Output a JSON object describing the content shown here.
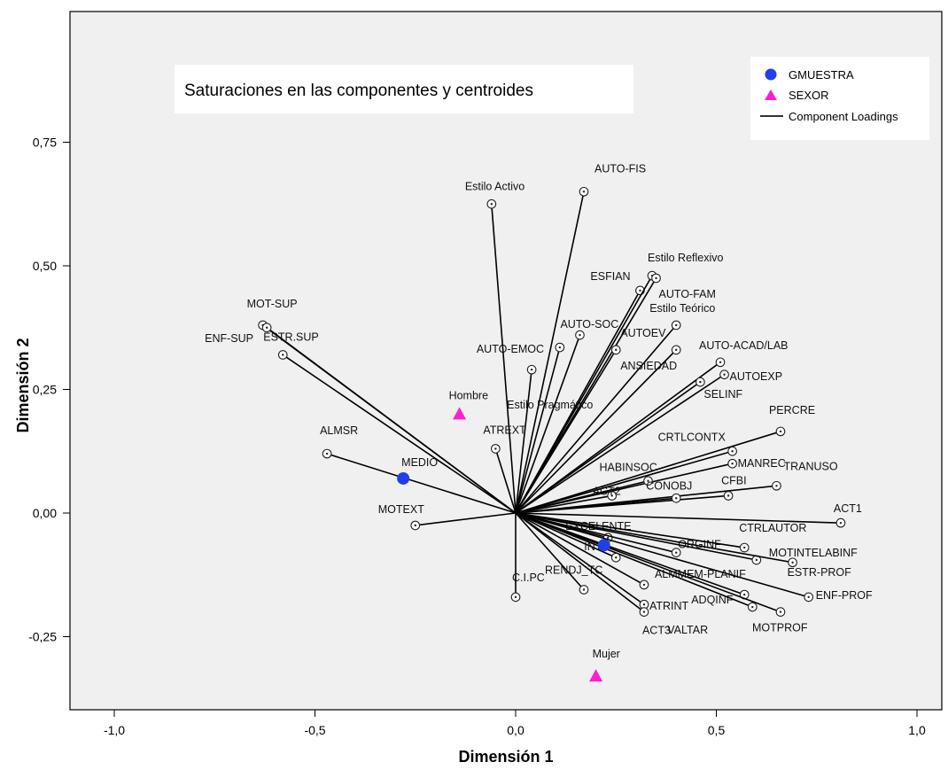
{
  "chart_data": {
    "type": "scatter",
    "title": "Saturaciones en las componentes y centroides",
    "xlabel": "Dimensión 1",
    "ylabel": "Dimensión 2",
    "xlim": [
      -1.1,
      1.1
    ],
    "ylim": [
      -0.4,
      1.0
    ],
    "x_ticks": [
      -1.0,
      -0.5,
      0.0,
      0.5,
      1.0
    ],
    "x_tick_labels": [
      "-1,0",
      "-0,5",
      "0,0",
      "0,5",
      "1,0"
    ],
    "y_ticks": [
      -0.25,
      0.0,
      0.25,
      0.5,
      0.75
    ],
    "y_tick_labels": [
      "-0,25",
      "0,00",
      "0,25",
      "0,50",
      "0,75"
    ],
    "legend": {
      "placement": "top-right",
      "items": [
        {
          "label": "GMUESTRA",
          "marker": "circle",
          "color": "#1f3fe8"
        },
        {
          "label": "SEXOR",
          "marker": "triangle",
          "color": "#ff1ecf"
        },
        {
          "label": "Component Loadings",
          "marker": "line",
          "color": "#000000"
        }
      ]
    },
    "plot_background": "#f0f0f0",
    "component_loadings": [
      {
        "name": "Estilo Activo",
        "x": -0.06,
        "y": 0.625
      },
      {
        "name": "AUTO-FIS",
        "x": 0.17,
        "y": 0.65
      },
      {
        "name": "ESFIAN",
        "x": 0.31,
        "y": 0.45
      },
      {
        "name": "Estilo Reflexivo",
        "x": 0.34,
        "y": 0.48
      },
      {
        "name": "AUTO-FAM",
        "x": 0.35,
        "y": 0.475
      },
      {
        "name": "AUTO-SOC",
        "x": 0.16,
        "y": 0.36
      },
      {
        "name": "AUTOEV",
        "x": 0.25,
        "y": 0.33
      },
      {
        "name": "Estilo Teórico",
        "x": 0.4,
        "y": 0.38
      },
      {
        "name": "AUTO-EMOC",
        "x": 0.11,
        "y": 0.335
      },
      {
        "name": "ANSIEDAD",
        "x": 0.4,
        "y": 0.33
      },
      {
        "name": "AUTO-ACAD/LAB",
        "x": 0.51,
        "y": 0.305
      },
      {
        "name": "AUTOEXP",
        "x": 0.52,
        "y": 0.28
      },
      {
        "name": "SELINF",
        "x": 0.46,
        "y": 0.265
      },
      {
        "name": "Estilo Pragmático",
        "x": 0.04,
        "y": 0.29
      },
      {
        "name": "MOT-SUP",
        "x": -0.63,
        "y": 0.38
      },
      {
        "name": "ENF-SUP",
        "x": -0.62,
        "y": 0.375
      },
      {
        "name": "ESTR.SUP",
        "x": -0.58,
        "y": 0.32
      },
      {
        "name": "ALMSR",
        "x": -0.47,
        "y": 0.12
      },
      {
        "name": "ATREXT",
        "x": -0.05,
        "y": 0.13
      },
      {
        "name": "PERCRE",
        "x": 0.66,
        "y": 0.165
      },
      {
        "name": "CRTLCONTX",
        "x": 0.54,
        "y": 0.125
      },
      {
        "name": "MANREC",
        "x": 0.54,
        "y": 0.1
      },
      {
        "name": "HABINSOC",
        "x": 0.33,
        "y": 0.065
      },
      {
        "name": "TRANUSO",
        "x": 0.65,
        "y": 0.055
      },
      {
        "name": "CFBI",
        "x": 0.53,
        "y": 0.035
      },
      {
        "name": "CONOBJ",
        "x": 0.4,
        "y": 0.03
      },
      {
        "name": "ACT2",
        "x": 0.24,
        "y": 0.035
      },
      {
        "name": "ACT1",
        "x": 0.81,
        "y": -0.02
      },
      {
        "name": "MOTEXT",
        "x": -0.25,
        "y": -0.025
      },
      {
        "name": "EXCELENTE",
        "x": 0.23,
        "y": -0.05
      },
      {
        "name": "ORGINF",
        "x": 0.4,
        "y": -0.08
      },
      {
        "name": "CTRLAUTOR",
        "x": 0.57,
        "y": -0.07
      },
      {
        "name": "MOTINTELABINF",
        "x": 0.6,
        "y": -0.095
      },
      {
        "name": "ESTR-PROF",
        "x": 0.69,
        "y": -0.1
      },
      {
        "name": "ENF-PROF",
        "x": 0.73,
        "y": -0.17
      },
      {
        "name": "ALMMEM-PLANIF",
        "x": 0.32,
        "y": -0.145
      },
      {
        "name": "ADQINF",
        "x": 0.57,
        "y": -0.165
      },
      {
        "name": "VALTAR",
        "x": 0.59,
        "y": -0.19
      },
      {
        "name": "MOTPROF",
        "x": 0.66,
        "y": -0.2
      },
      {
        "name": "RENDJ_TC",
        "x": 0.17,
        "y": -0.155
      },
      {
        "name": "C.I.PC",
        "x": 0.0,
        "y": -0.17
      },
      {
        "name": "ATRINT",
        "x": 0.32,
        "y": -0.185
      },
      {
        "name": "ACT3",
        "x": 0.32,
        "y": -0.2
      },
      {
        "name": "INT",
        "x": 0.25,
        "y": -0.09
      }
    ],
    "centroids": [
      {
        "group": "GMUESTRA",
        "label": "MEDIO",
        "x": -0.28,
        "y": 0.07,
        "marker": "circle",
        "color": "#1f3fe8"
      },
      {
        "group": "GMUESTRA",
        "label": "",
        "x": 0.22,
        "y": -0.065,
        "marker": "circle",
        "color": "#1f3fe8"
      },
      {
        "group": "SEXOR",
        "label": "Hombre",
        "x": -0.14,
        "y": 0.2,
        "marker": "triangle",
        "color": "#ff1ecf"
      },
      {
        "group": "SEXOR",
        "label": "Mujer",
        "x": 0.2,
        "y": -0.33,
        "marker": "triangle",
        "color": "#ff1ecf"
      }
    ]
  }
}
